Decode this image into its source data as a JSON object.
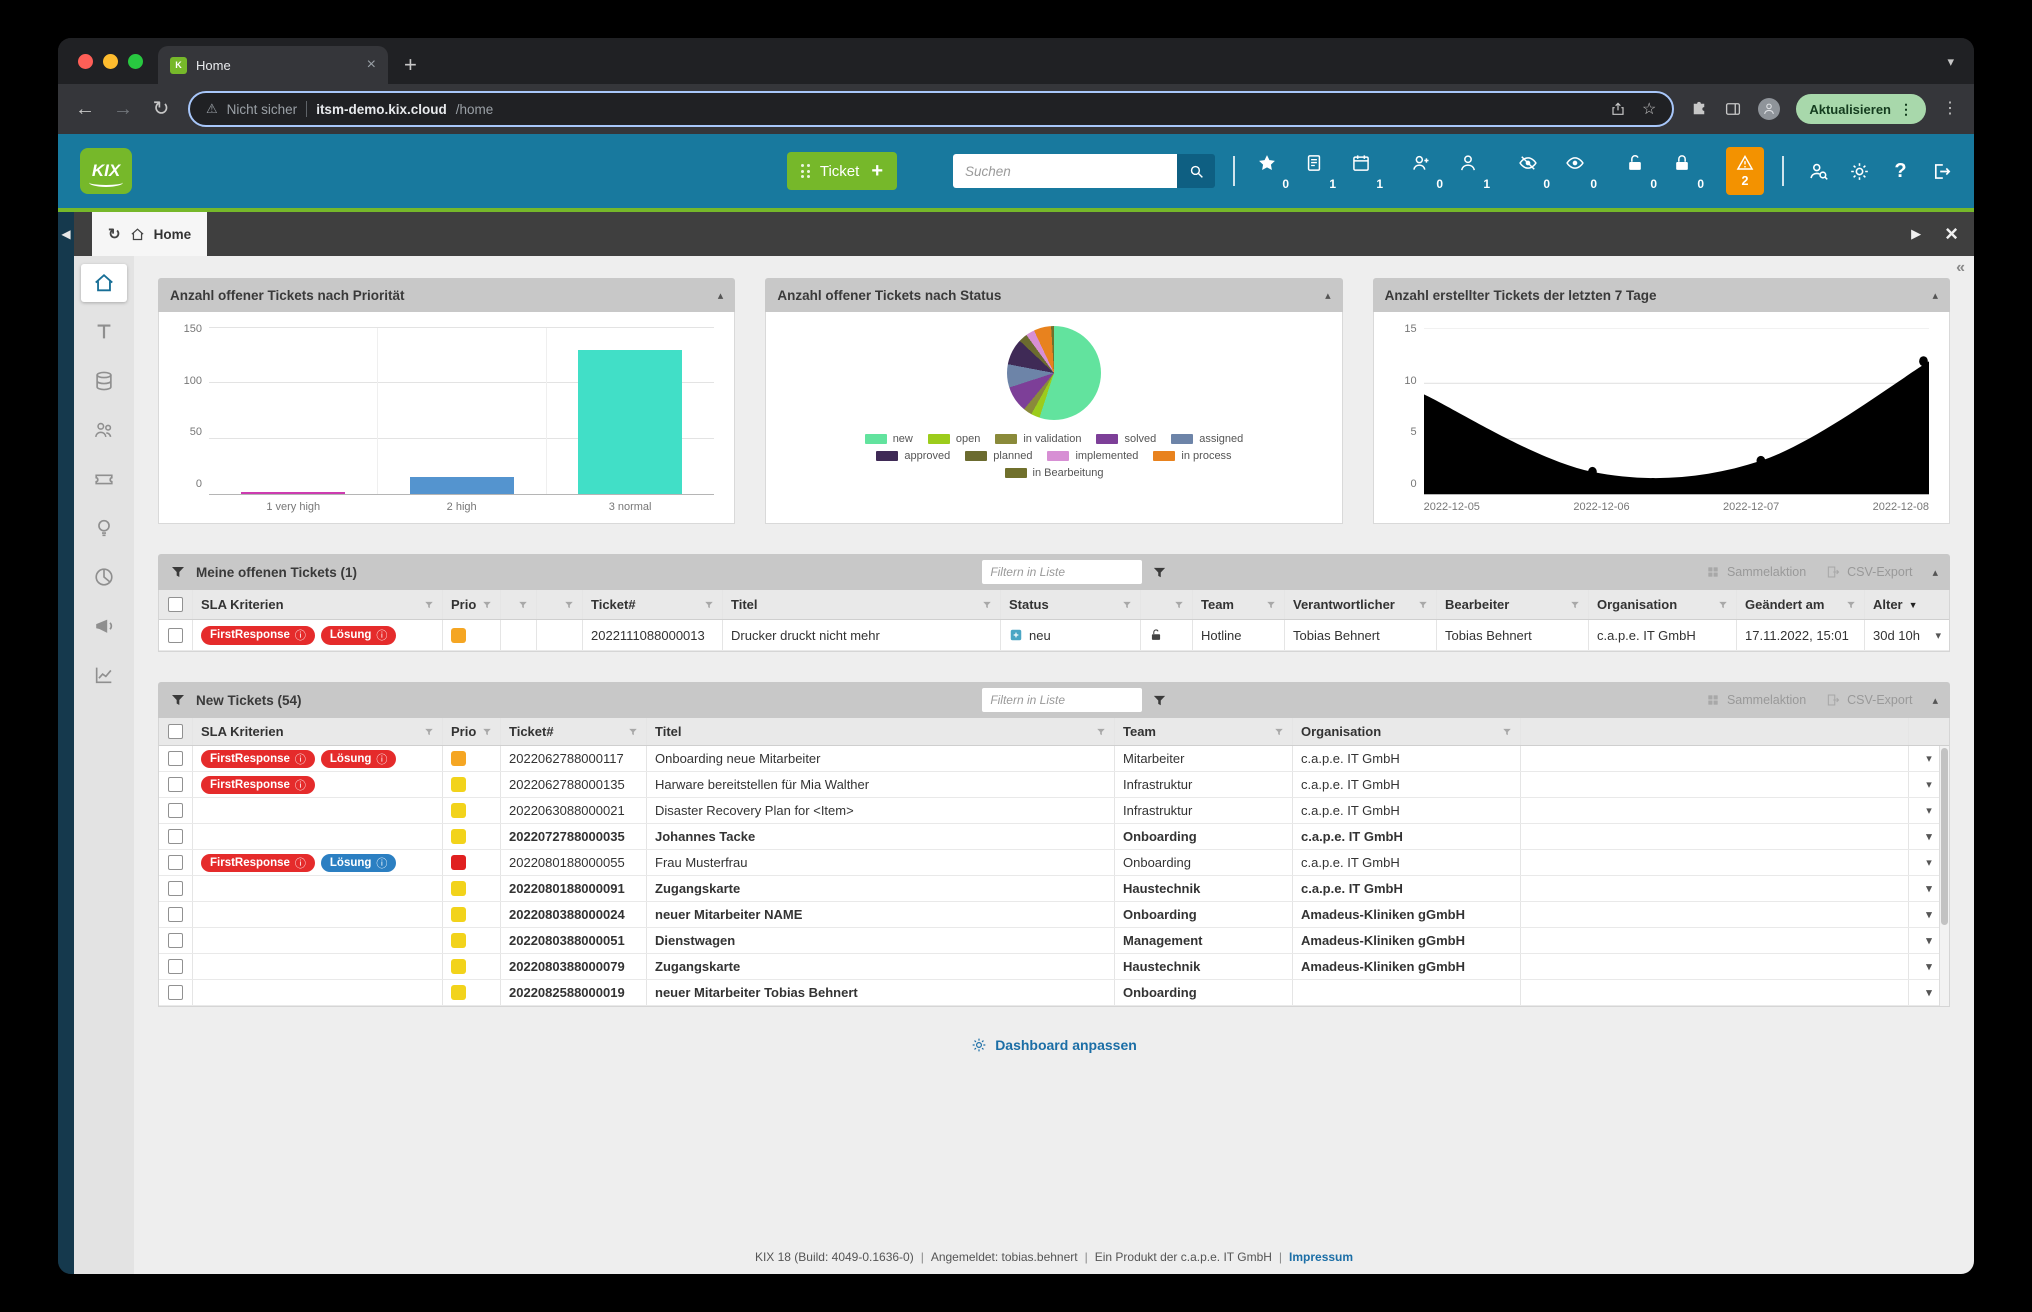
{
  "browser": {
    "tab_title": "Home",
    "security_warning": "Nicht sicher",
    "url_host": "itsm-demo.kix.cloud",
    "url_path": "/home",
    "update_button": "Aktualisieren"
  },
  "app_header": {
    "logo_text": "KIX",
    "ticket_button_label": "Ticket",
    "ticket_button_plus": "+",
    "search_placeholder": "Suchen",
    "counter_groups": [
      [
        {
          "icon": "star",
          "count": "0"
        },
        {
          "icon": "note",
          "count": "1"
        },
        {
          "icon": "calendar",
          "count": "1"
        }
      ],
      [
        {
          "icon": "person-plus",
          "count": "0"
        },
        {
          "icon": "person",
          "count": "1"
        }
      ],
      [
        {
          "icon": "eye-off",
          "count": "0"
        },
        {
          "icon": "eye",
          "count": "0"
        }
      ],
      [
        {
          "icon": "lock-open",
          "count": "0"
        },
        {
          "icon": "lock",
          "count": "0"
        }
      ]
    ],
    "alert_count": "2",
    "help_label": "?"
  },
  "tab_row": {
    "active_tab_label": "Home"
  },
  "sidebar": {
    "items": [
      "home",
      "ticket-templates",
      "assets",
      "organisations",
      "tickets",
      "ideas",
      "reports",
      "news",
      "processes"
    ]
  },
  "chart_data": [
    {
      "type": "bar",
      "title": "Anzahl offener Tickets nach Priorität",
      "categories": [
        "1 very high",
        "2 high",
        "3 normal"
      ],
      "values": [
        2,
        15,
        130
      ],
      "colors": [
        "#cd3bb0",
        "#5494cf",
        "#41dfc7"
      ],
      "ylim": [
        0,
        150
      ],
      "yticks": [
        150,
        100,
        50,
        0
      ],
      "grid": true
    },
    {
      "type": "pie",
      "title": "Anzahl offener Tickets nach Status",
      "labels": [
        "new",
        "open",
        "in validation",
        "solved",
        "assigned",
        "approved",
        "planned",
        "implemented",
        "in process",
        "in Bearbeitung"
      ],
      "values": [
        55,
        3,
        3,
        9,
        8,
        9,
        3,
        3,
        6,
        1
      ],
      "colors": [
        "#62e39e",
        "#9ccc1c",
        "#8a8a3a",
        "#7d3f98",
        "#6d84a8",
        "#3f2a56",
        "#6b6b2f",
        "#d78fd4",
        "#e8821e",
        "#70702c"
      ],
      "legend_rows": [
        [
          0,
          1,
          2,
          3,
          4
        ],
        [
          5,
          6,
          7,
          8
        ],
        [
          9
        ]
      ]
    },
    {
      "type": "area",
      "title": "Anzahl erstellter Tickets der letzten 7 Tage",
      "x": [
        "2022-12-05",
        "2022-12-06",
        "2022-12-07",
        "2022-12-08"
      ],
      "values": [
        9,
        2,
        3,
        12
      ],
      "color": "#000000",
      "ylim": [
        0,
        15
      ],
      "yticks": [
        15,
        10,
        5,
        0
      ],
      "grid": true
    }
  ],
  "my_tickets": {
    "title": "Meine offenen Tickets (1)",
    "filter_placeholder": "Filtern in Liste",
    "bulk_action_label": "Sammelaktion",
    "csv_export_label": "CSV-Export",
    "columns": [
      "SLA Kriterien",
      "Prio",
      "",
      "",
      "Ticket#",
      "Titel",
      "Status",
      "",
      "Team",
      "Verantwortlicher",
      "Bearbeiter",
      "Organisation",
      "Geändert am",
      "Alter"
    ],
    "rows": [
      {
        "sla": [
          {
            "label": "FirstResponse",
            "color": "red"
          },
          {
            "label": "Lösung",
            "color": "red"
          }
        ],
        "prio": "#f5a623",
        "ticket_number": "2022111088000013",
        "title": "Drucker druckt nicht mehr",
        "status": "neu",
        "team": "Hotline",
        "responsible": "Tobias Behnert",
        "owner": "Tobias Behnert",
        "organisation": "c.a.p.e. IT GmbH",
        "changed_at": "17.11.2022, 15:01",
        "age": "30d 10h",
        "bold": false
      }
    ]
  },
  "new_tickets": {
    "title": "New Tickets (54)",
    "filter_placeholder": "Filtern in Liste",
    "bulk_action_label": "Sammelaktion",
    "csv_export_label": "CSV-Export",
    "columns": [
      "SLA Kriterien",
      "Prio",
      "Ticket#",
      "Titel",
      "Team",
      "Organisation"
    ],
    "rows": [
      {
        "sla": [
          {
            "label": "FirstResponse",
            "color": "red"
          },
          {
            "label": "Lösung",
            "color": "red"
          }
        ],
        "prio": "#f5a623",
        "ticket_number": "2022062788000117",
        "title": "Onboarding neue Mitarbeiter",
        "team": "Mitarbeiter",
        "organisation": "c.a.p.e. IT GmbH",
        "bold": false
      },
      {
        "sla": [
          {
            "label": "FirstResponse",
            "color": "red"
          }
        ],
        "prio": "#f2d31b",
        "ticket_number": "2022062788000135",
        "title": "Harware bereitstellen für Mia Walther",
        "team": "Infrastruktur",
        "organisation": "c.a.p.e. IT GmbH",
        "bold": false
      },
      {
        "sla": [],
        "prio": "#f2d31b",
        "ticket_number": "2022063088000021",
        "title": "Disaster Recovery Plan for <Item>",
        "team": "Infrastruktur",
        "organisation": "c.a.p.e. IT GmbH",
        "bold": false
      },
      {
        "sla": [],
        "prio": "#f2d31b",
        "ticket_number": "2022072788000035",
        "title": "Johannes Tacke",
        "team": "Onboarding",
        "organisation": "c.a.p.e. IT GmbH",
        "bold": true
      },
      {
        "sla": [
          {
            "label": "FirstResponse",
            "color": "red"
          },
          {
            "label": "Lösung",
            "color": "blue"
          }
        ],
        "prio": "#e02020",
        "ticket_number": "2022080188000055",
        "title": "Frau Musterfrau",
        "team": "Onboarding",
        "organisation": "c.a.p.e. IT GmbH",
        "bold": false
      },
      {
        "sla": [],
        "prio": "#f2d31b",
        "ticket_number": "2022080188000091",
        "title": "Zugangskarte",
        "team": "Haustechnik",
        "organisation": "c.a.p.e. IT GmbH",
        "bold": true
      },
      {
        "sla": [],
        "prio": "#f2d31b",
        "ticket_number": "2022080388000024",
        "title": "neuer Mitarbeiter NAME",
        "team": "Onboarding",
        "organisation": "Amadeus-Kliniken gGmbH",
        "bold": true
      },
      {
        "sla": [],
        "prio": "#f2d31b",
        "ticket_number": "2022080388000051",
        "title": "Dienstwagen",
        "team": "Management",
        "organisation": "Amadeus-Kliniken gGmbH",
        "bold": true
      },
      {
        "sla": [],
        "prio": "#f2d31b",
        "ticket_number": "2022080388000079",
        "title": "Zugangskarte",
        "team": "Haustechnik",
        "organisation": "Amadeus-Kliniken gGmbH",
        "bold": true
      },
      {
        "sla": [],
        "prio": "#f2d31b",
        "ticket_number": "2022082588000019",
        "title": "neuer Mitarbeiter Tobias Behnert",
        "team": "Onboarding",
        "organisation": "",
        "bold": true
      }
    ]
  },
  "dashboard_link_label": "Dashboard anpassen",
  "footer": {
    "build": "KIX 18 (Build: 4049-0.1636-0)",
    "logged_in": "Angemeldet: tobias.behnert",
    "product": "Ein Produkt der c.a.p.e. IT GmbH",
    "impressum": "Impressum"
  }
}
